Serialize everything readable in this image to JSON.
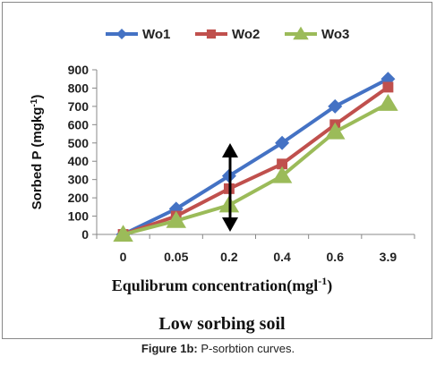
{
  "chart_data": {
    "type": "line",
    "categories": [
      "0",
      "0.05",
      "0.2",
      "0.4",
      "0.6",
      "3.9"
    ],
    "series": [
      {
        "name": "Wo1",
        "color": "#4472c4",
        "marker": "diamond",
        "values": [
          0,
          140,
          320,
          500,
          700,
          850
        ]
      },
      {
        "name": "Wo2",
        "color": "#c0504d",
        "marker": "square",
        "values": [
          0,
          100,
          250,
          385,
          600,
          805
        ]
      },
      {
        "name": "Wo3",
        "color": "#9bbb59",
        "marker": "triangle",
        "values": [
          0,
          75,
          160,
          320,
          560,
          715
        ]
      }
    ],
    "ylabel_main": "Sorbed P (mgkg",
    "ylabel_sup": "-1",
    "ylabel_close": ")",
    "xlabel_main": "Equlibrum concentration(mgl",
    "xlabel_sup": "-1",
    "xlabel_close": ")",
    "subtitle": "Low sorbing soil",
    "ylim": [
      0,
      900
    ],
    "yticks": [
      "0",
      "100",
      "200",
      "300",
      "400",
      "500",
      "600",
      "700",
      "800",
      "900"
    ],
    "legend_position": "top",
    "grid": false
  },
  "caption": {
    "label": "Figure 1b:",
    "text": " P-sorbtion curves."
  }
}
